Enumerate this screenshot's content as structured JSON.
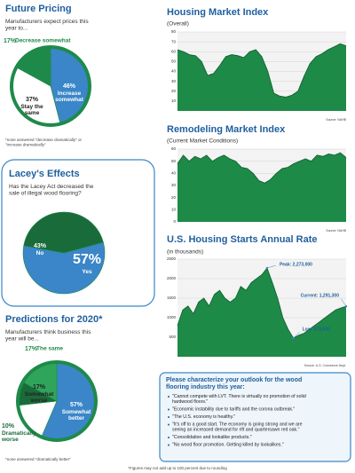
{
  "chart_data": [
    {
      "type": "pie",
      "title": "Future Pricing",
      "subtitle": "Manufacturers expect prices this year to...",
      "categories": [
        "Increase somewhat",
        "Stay the same",
        "Decrease somewhat"
      ],
      "values": [
        46,
        37,
        17
      ],
      "value_labels": [
        "46%",
        "37%",
        "17%"
      ],
      "colors": [
        "#3a86c8",
        "#ffffff",
        "#1e8a4a"
      ],
      "note": "*none answered \"decrease dramatically\" or \"increase dramatically\""
    },
    {
      "type": "pie",
      "title": "Lacey's Effects",
      "subtitle": "Has the Lacey Act decreased the sale of illegal wood flooring?",
      "categories": [
        "Yes",
        "No"
      ],
      "values": [
        57,
        43
      ],
      "value_labels": [
        "57%",
        "43%"
      ],
      "colors": [
        "#3a86c8",
        "#1a6b3a"
      ]
    },
    {
      "type": "pie",
      "title": "Predictions for 2020*",
      "subtitle": "Manufacturers think business this year will be...",
      "categories": [
        "Somewhat better",
        "Somewhat worse",
        "Dramatically worse",
        "The same"
      ],
      "values": [
        57,
        17,
        10,
        17
      ],
      "value_labels": [
        "57%",
        "17%",
        "10%",
        "17%"
      ],
      "colors": [
        "#3a86c8",
        "#ffffff",
        "#1a6b3a",
        "#2fa55a"
      ],
      "note": "*none answered \"dramatically better\""
    },
    {
      "type": "area",
      "title": "Housing Market Index",
      "subtitle": "(Overall)",
      "source": "Source: NAHB",
      "values": [
        62,
        60,
        57,
        56,
        50,
        36,
        38,
        46,
        55,
        57,
        56,
        54,
        60,
        62,
        55,
        40,
        18,
        15,
        14,
        16,
        20,
        35,
        48,
        55,
        58,
        62,
        65,
        68,
        66
      ],
      "color": "#1d8a47",
      "ylim": [
        0,
        80
      ],
      "yticks": [
        10,
        20,
        30,
        40,
        50,
        60,
        70,
        80
      ],
      "grid": true
    },
    {
      "type": "area",
      "title": "Remodeling Market Index",
      "subtitle": "(Current Market Conditions)",
      "source": "Source: NAHB",
      "values": [
        48,
        55,
        50,
        54,
        52,
        55,
        50,
        53,
        55,
        52,
        50,
        45,
        44,
        40,
        34,
        32,
        35,
        40,
        44,
        45,
        48,
        50,
        52,
        50,
        55,
        54,
        56,
        55,
        57,
        53
      ],
      "color": "#1d8a47",
      "ylim": [
        0,
        60
      ],
      "yticks": [
        0,
        10,
        20,
        30,
        40,
        50,
        60
      ],
      "grid": true
    },
    {
      "type": "area",
      "title": "U.S. Housing Starts Annual Rate",
      "subtitle": "(in thousands)",
      "source": "Source: U.S. Commerce Dept.",
      "values": [
        800,
        1200,
        1300,
        1100,
        1400,
        1500,
        1300,
        1600,
        1700,
        1500,
        1400,
        1500,
        1800,
        1700,
        1900,
        2000,
        2100,
        2273,
        1900,
        1500,
        1000,
        700,
        478,
        550,
        600,
        700,
        800,
        900,
        1000,
        1100,
        1200,
        1250,
        1291.3
      ],
      "color": "#1d8a47",
      "ylim": [
        0,
        2500
      ],
      "yticks": [
        500,
        1000,
        1500,
        2000,
        2500
      ],
      "grid": true,
      "annotations": [
        {
          "label": "Peak: 2,273,000",
          "value": 2273
        },
        {
          "label": "Low: 478,000",
          "value": 478
        },
        {
          "label": "Current: 1,291,300",
          "value": 1291.3
        }
      ]
    }
  ],
  "outlook": {
    "title": "Please characterize your outlook for the wood flooring industry this year:",
    "items": [
      "\"Cannot compete with LVT. There is virtually no promotion of solid hardwood floors.\"",
      "\"Economic instability due to tariffs and the corona outbreak.\"",
      "\"The U.S. economy is healthy.\"",
      "\"It's off to a good start. The economy is going strong and we are seeing an increased demand for rift and quartersawn red oak.\"",
      "\"Consolidation and lookalike products.\"",
      "\"No wood floor promotion. Getting killed by lookalikes.\""
    ]
  },
  "footnote": "*Figures may not add up to 100 percent due to rounding"
}
